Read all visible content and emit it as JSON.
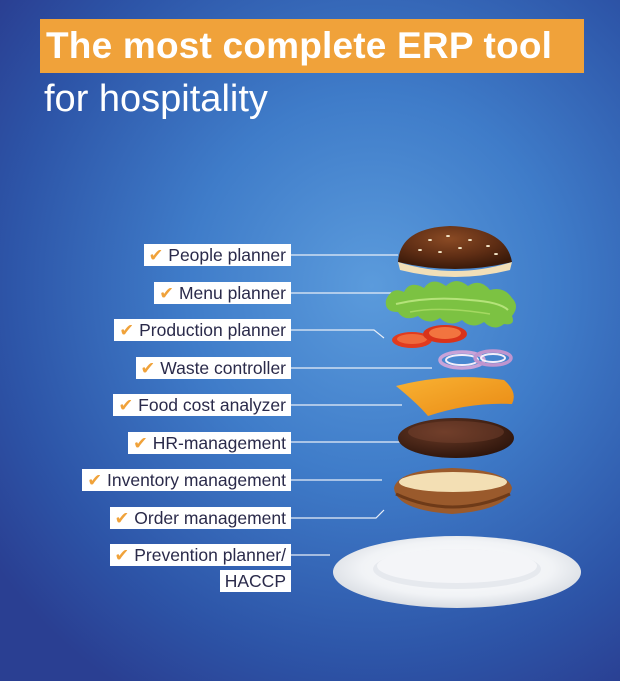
{
  "header": {
    "title": "The most complete ERP tool",
    "subtitle": "for hospitality"
  },
  "colors": {
    "accent": "#f0a23a",
    "background": "#3f7cc9",
    "label_bg": "#ffffff"
  },
  "features": [
    {
      "label": "People planner",
      "icon": "check-icon"
    },
    {
      "label": "Menu planner",
      "icon": "check-icon"
    },
    {
      "label": "Production planner",
      "icon": "check-icon"
    },
    {
      "label": "Waste controller",
      "icon": "check-icon"
    },
    {
      "label": "Food cost analyzer",
      "icon": "check-icon"
    },
    {
      "label": "HR-management",
      "icon": "check-icon"
    },
    {
      "label": "Inventory management",
      "icon": "check-icon"
    },
    {
      "label": "Order management",
      "icon": "check-icon"
    },
    {
      "label_line1": "Prevention planner/",
      "label_line2": "HACCP",
      "icon": "check-icon"
    }
  ]
}
